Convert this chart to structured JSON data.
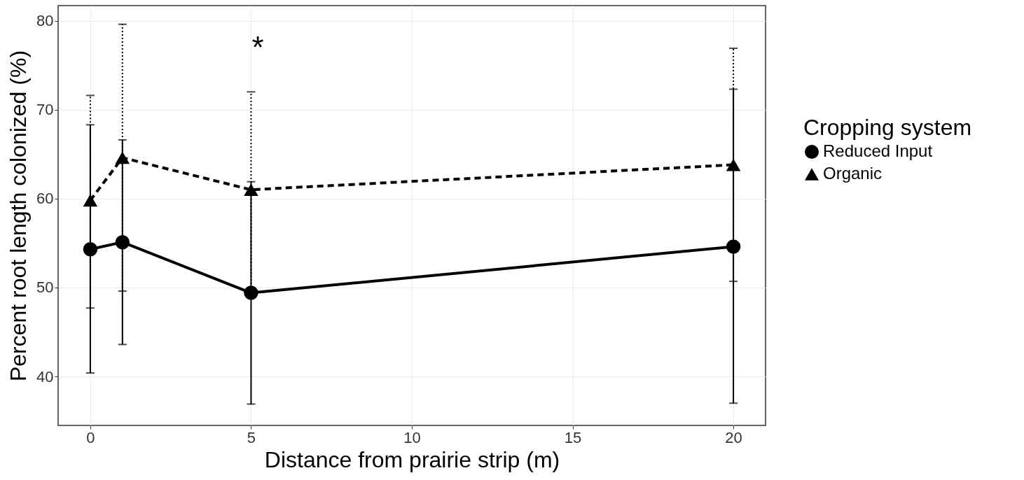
{
  "chart_data": {
    "type": "line",
    "xlabel": "Distance from prairie strip (m)",
    "ylabel": "Percent root length colonized (%)",
    "legend_title": "Cropping system",
    "legend": "right",
    "grid": true,
    "x": [
      0,
      1,
      5,
      20
    ],
    "xlim": [
      -1,
      21
    ],
    "xticks": [
      0,
      5,
      10,
      15,
      20
    ],
    "ylim": [
      34.5,
      81.7
    ],
    "yticks": [
      40,
      50,
      60,
      70,
      80
    ],
    "series": [
      {
        "name": "Reduced Input",
        "color": "#000000",
        "marker": "circle",
        "line_style": "solid",
        "values": [
          54.3,
          55.1,
          49.4,
          54.6
        ],
        "errors": [
          [
            40.4,
            68.3
          ],
          [
            43.6,
            66.6
          ],
          [
            36.9,
            61.9
          ],
          [
            37.0,
            72.3
          ]
        ]
      },
      {
        "name": "Organic",
        "color": "#000000",
        "marker": "triangle",
        "line_style": "dashed",
        "values": [
          59.8,
          64.6,
          61.0,
          63.8
        ],
        "errors": [
          [
            47.7,
            71.6
          ],
          [
            49.6,
            79.6
          ],
          [
            50.0,
            72.0
          ],
          [
            50.7,
            76.9
          ]
        ]
      }
    ],
    "annotations": [
      "*"
    ]
  }
}
